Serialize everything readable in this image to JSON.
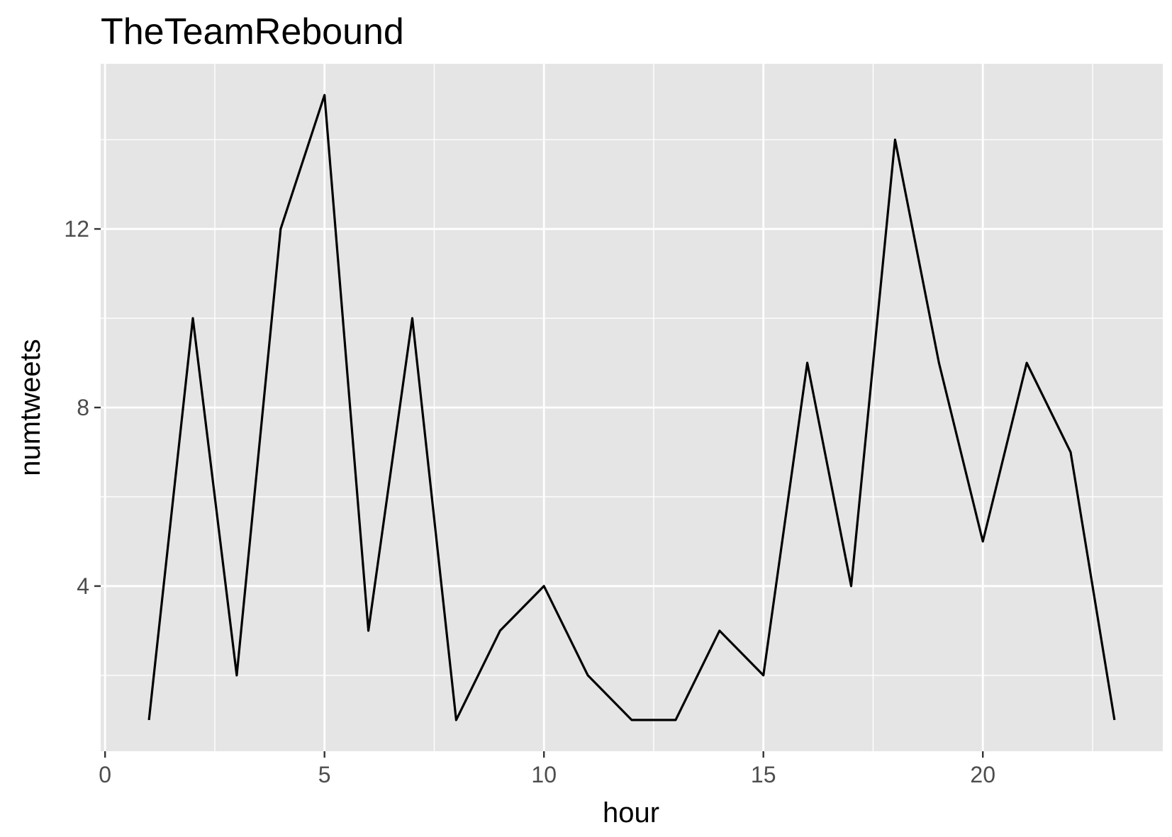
{
  "chart_data": {
    "type": "line",
    "title": "TheTeamRebound",
    "xlabel": "hour",
    "ylabel": "numtweets",
    "x": [
      1,
      2,
      3,
      4,
      5,
      6,
      7,
      8,
      9,
      10,
      11,
      12,
      13,
      14,
      15,
      16,
      17,
      18,
      19,
      20,
      21,
      22,
      23
    ],
    "series": [
      {
        "values": [
          1,
          10,
          2,
          12,
          15,
          3,
          10,
          1,
          3,
          4,
          2,
          1,
          1,
          3,
          2,
          9,
          4,
          14,
          9,
          5,
          9,
          7,
          1
        ]
      }
    ],
    "xlim": [
      -0.1,
      24.1
    ],
    "ylim": [
      0.3,
      15.7
    ],
    "x_ticks": [
      0,
      5,
      10,
      15,
      20
    ],
    "x_tick_labels": [
      "0",
      "5",
      "10",
      "15",
      "20"
    ],
    "x_minor_ticks": [
      2.5,
      7.5,
      12.5,
      17.5,
      22.5
    ],
    "y_ticks": [
      4,
      8,
      12
    ],
    "y_tick_labels": [
      "4",
      "8",
      "12"
    ],
    "y_minor_ticks": [
      2,
      6,
      10,
      14
    ],
    "grid": true,
    "legend": "none",
    "colors": {
      "panel": "#e5e5e5",
      "gridline": "#ffffff",
      "line": "#000000",
      "tick_label": "#4d4d4d",
      "text": "#000000"
    }
  }
}
